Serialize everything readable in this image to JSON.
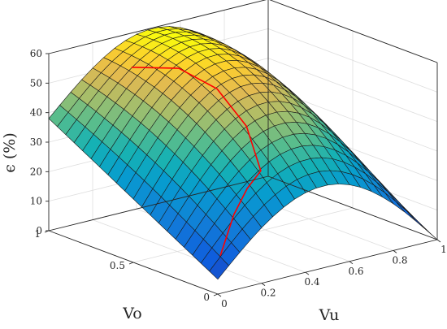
{
  "chart_data": {
    "type": "surface",
    "xlabel": "Vu",
    "ylabel": "Vo",
    "zlabel": "ϵ (%)",
    "xlim": [
      0,
      1
    ],
    "ylim": [
      0,
      1
    ],
    "zlim": [
      0,
      60
    ],
    "x_ticks": [
      "0",
      "0.2",
      "0.4",
      "0.6",
      "0.8",
      "1"
    ],
    "y_ticks": [
      "0",
      "0.5",
      "1"
    ],
    "z_ticks": [
      "0",
      "10",
      "20",
      "30",
      "40",
      "50",
      "60"
    ],
    "grid": true,
    "colormap": "parula",
    "surface": {
      "description": "efficiency surface vs Vu and Vo",
      "grid_size": 20,
      "samples": [
        {
          "Vu": 0,
          "Vo": 0,
          "eff": 5
        },
        {
          "Vu": 0,
          "Vo": 1,
          "eff": 38
        },
        {
          "Vu": 1,
          "Vo": 0,
          "eff": 0
        },
        {
          "Vu": 1,
          "Vo": 1,
          "eff": 31
        },
        {
          "Vu": 0.35,
          "Vo": 0.6,
          "eff": 54
        }
      ]
    },
    "series": [
      {
        "color": "#ff0000",
        "description": "red operating trajectory on surface",
        "points": [
          {
            "Vu": 0.05,
            "Vo": 0.05,
            "eff": 11
          },
          {
            "Vu": 0.15,
            "Vo": 0.1,
            "eff": 22
          },
          {
            "Vu": 0.25,
            "Vo": 0.15,
            "eff": 28
          },
          {
            "Vu": 0.35,
            "Vo": 0.2,
            "eff": 31
          },
          {
            "Vu": 0.4,
            "Vo": 0.35,
            "eff": 42
          },
          {
            "Vu": 0.42,
            "Vo": 0.55,
            "eff": 50
          },
          {
            "Vu": 0.4,
            "Vo": 0.75,
            "eff": 53
          },
          {
            "Vu": 0.3,
            "Vo": 0.9,
            "eff": 52
          }
        ]
      }
    ]
  }
}
